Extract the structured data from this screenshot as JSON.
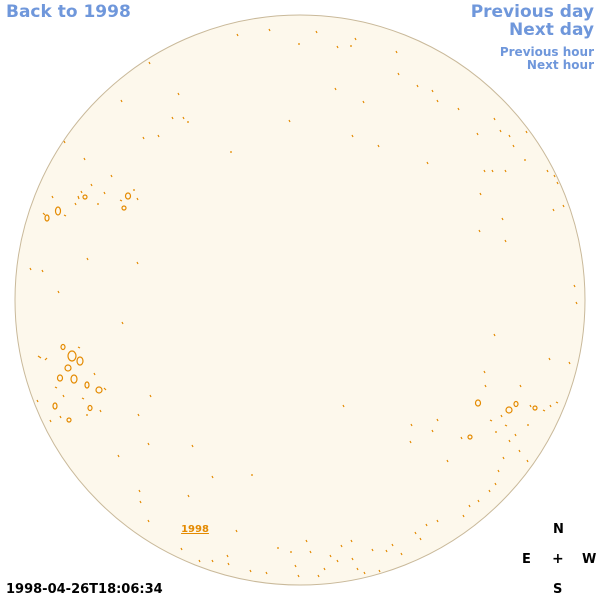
{
  "nav": {
    "back": "Back to 1998",
    "previous_day": "Previous day",
    "next_day": "Next day",
    "previous_hour": "Previous hour",
    "next_hour": "Next hour"
  },
  "disk": {
    "year_label": "1998",
    "fill_color": "#fdf8ec",
    "limb_color": "#c9b99a",
    "contour_color": "#e48a00"
  },
  "compass": {
    "north": "N",
    "south": "S",
    "east": "E",
    "west": "W",
    "center": "+"
  },
  "timestamp": "1998-04-26T18:06:34"
}
